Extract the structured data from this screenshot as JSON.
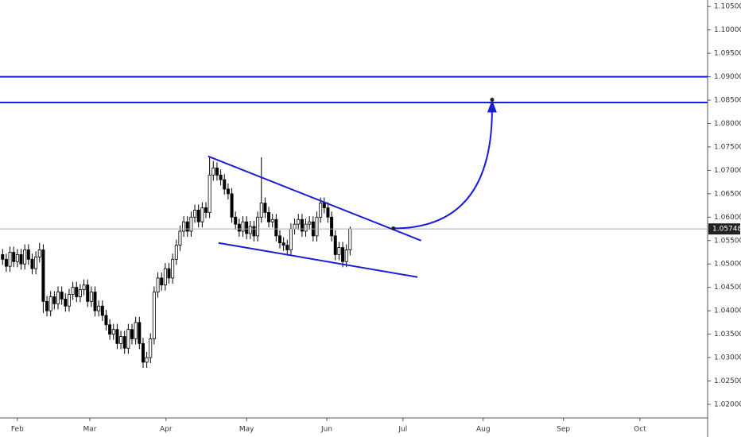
{
  "chart_data": {
    "type": "candlestick",
    "x": [
      -4,
      -3,
      -2,
      -1,
      0,
      1,
      2,
      3,
      4,
      5,
      6,
      7,
      8,
      9,
      10,
      11,
      12,
      13,
      14,
      15,
      16,
      17,
      18,
      19,
      20,
      21,
      22,
      23,
      24,
      25,
      26,
      27,
      28,
      29,
      30,
      31,
      32,
      33,
      34,
      35,
      36,
      37,
      38,
      39,
      40,
      41,
      42,
      43,
      44,
      45,
      46,
      47,
      48,
      49,
      50,
      51,
      52,
      53,
      54,
      55,
      56,
      57,
      58,
      59,
      60,
      61,
      62,
      63,
      64,
      65,
      66,
      67,
      68,
      69,
      70,
      71,
      72,
      73,
      74,
      75,
      76,
      77,
      78,
      79,
      80,
      81,
      82,
      83,
      84,
      85,
      86,
      87,
      88,
      89,
      90
    ],
    "open": [
      1.052,
      1.051,
      1.0495,
      1.0525,
      1.0505,
      1.052,
      1.05,
      1.053,
      1.051,
      1.049,
      1.0515,
      1.053,
      1.042,
      1.04,
      1.043,
      1.0415,
      1.044,
      1.0425,
      1.041,
      1.0435,
      1.045,
      1.043,
      1.0445,
      1.0455,
      1.042,
      1.044,
      1.04,
      1.041,
      1.039,
      1.037,
      1.035,
      1.036,
      1.033,
      1.0345,
      1.032,
      1.036,
      1.034,
      1.0375,
      1.033,
      1.029,
      1.03,
      1.034,
      1.044,
      1.047,
      1.0455,
      1.049,
      1.047,
      1.051,
      1.054,
      1.057,
      1.059,
      1.057,
      1.06,
      1.0615,
      1.059,
      1.062,
      1.061,
      1.069,
      1.0705,
      1.069,
      1.068,
      1.066,
      1.065,
      1.06,
      1.0585,
      1.057,
      1.059,
      1.0565,
      1.058,
      1.056,
      1.06,
      1.063,
      1.061,
      1.059,
      1.0595,
      1.056,
      1.0545,
      1.054,
      1.053,
      1.0575,
      1.0585,
      1.0595,
      1.057,
      1.0585,
      1.059,
      1.056,
      1.06,
      1.063,
      1.062,
      1.06,
      1.056,
      1.052,
      1.0535,
      1.0505,
      1.053
    ],
    "high": [
      1.0532,
      1.0522,
      1.0537,
      1.0537,
      1.0532,
      1.0532,
      1.0542,
      1.0542,
      1.0522,
      1.0527,
      1.0545,
      1.0542,
      1.0432,
      1.0442,
      1.0442,
      1.0452,
      1.0452,
      1.0437,
      1.0447,
      1.0462,
      1.0462,
      1.0457,
      1.0467,
      1.0467,
      1.0452,
      1.0452,
      1.0422,
      1.0422,
      1.0402,
      1.0382,
      1.0372,
      1.0372,
      1.0357,
      1.0357,
      1.0372,
      1.0372,
      1.0387,
      1.0387,
      1.0342,
      1.0312,
      1.0352,
      1.0452,
      1.0482,
      1.0482,
      1.0502,
      1.0502,
      1.0522,
      1.0552,
      1.0582,
      1.0602,
      1.0602,
      1.0612,
      1.0627,
      1.0627,
      1.0632,
      1.0632,
      1.0728,
      1.072,
      1.0717,
      1.0702,
      1.0692,
      1.0672,
      1.0662,
      1.0612,
      1.0597,
      1.0602,
      1.0602,
      1.0592,
      1.0592,
      1.0612,
      1.0728,
      1.0642,
      1.0622,
      1.0607,
      1.0607,
      1.0572,
      1.0557,
      1.0552,
      1.0587,
      1.0597,
      1.0607,
      1.0607,
      1.0597,
      1.0602,
      1.0602,
      1.0612,
      1.0642,
      1.0642,
      1.0632,
      1.0612,
      1.0572,
      1.0547,
      1.0547,
      1.0542,
      1.058
    ],
    "low": [
      1.0498,
      1.0483,
      1.0483,
      1.0493,
      1.0493,
      1.0488,
      1.0488,
      1.0498,
      1.0478,
      1.0478,
      1.0503,
      1.0395,
      1.0388,
      1.0388,
      1.0403,
      1.0403,
      1.0413,
      1.0398,
      1.0398,
      1.0423,
      1.0418,
      1.0418,
      1.0433,
      1.0408,
      1.0408,
      1.0388,
      1.0388,
      1.0378,
      1.0358,
      1.0338,
      1.0338,
      1.0318,
      1.0318,
      1.0308,
      1.0308,
      1.0328,
      1.0328,
      1.0318,
      1.0278,
      1.0278,
      1.0288,
      1.0328,
      1.0428,
      1.0443,
      1.0443,
      1.0458,
      1.0458,
      1.0498,
      1.0528,
      1.0558,
      1.0558,
      1.0558,
      1.0588,
      1.0578,
      1.0578,
      1.0598,
      1.0598,
      1.0678,
      1.0678,
      1.0668,
      1.0648,
      1.0638,
      1.0588,
      1.0573,
      1.0558,
      1.0558,
      1.0553,
      1.0553,
      1.0548,
      1.0548,
      1.0588,
      1.0598,
      1.0578,
      1.0578,
      1.0548,
      1.0533,
      1.0528,
      1.0518,
      1.0518,
      1.0563,
      1.0573,
      1.0558,
      1.0558,
      1.0573,
      1.0548,
      1.0548,
      1.0588,
      1.0608,
      1.0588,
      1.0548,
      1.0508,
      1.0508,
      1.0493,
      1.0493,
      1.0518
    ],
    "close": [
      1.051,
      1.0495,
      1.0525,
      1.0505,
      1.052,
      1.05,
      1.053,
      1.051,
      1.049,
      1.0515,
      1.053,
      1.042,
      1.04,
      1.043,
      1.0415,
      1.044,
      1.0425,
      1.041,
      1.0435,
      1.045,
      1.043,
      1.0445,
      1.0455,
      1.042,
      1.044,
      1.04,
      1.041,
      1.039,
      1.037,
      1.035,
      1.036,
      1.033,
      1.0345,
      1.032,
      1.036,
      1.034,
      1.0375,
      1.033,
      1.029,
      1.03,
      1.034,
      1.044,
      1.047,
      1.0455,
      1.049,
      1.047,
      1.051,
      1.054,
      1.057,
      1.059,
      1.057,
      1.06,
      1.0615,
      1.059,
      1.062,
      1.061,
      1.069,
      1.0705,
      1.069,
      1.068,
      1.066,
      1.065,
      1.06,
      1.0585,
      1.057,
      1.059,
      1.0565,
      1.058,
      1.056,
      1.06,
      1.063,
      1.061,
      1.059,
      1.0595,
      1.056,
      1.0545,
      1.054,
      1.053,
      1.0575,
      1.0585,
      1.0595,
      1.057,
      1.0585,
      1.059,
      1.056,
      1.06,
      1.063,
      1.062,
      1.06,
      1.056,
      1.052,
      1.0535,
      1.0505,
      1.053,
      1.05748
    ],
    "last_price": 1.05748,
    "xlim": [
      -4.7,
      186.7
    ],
    "xticks": [
      {
        "value": 0,
        "label": "Feb"
      },
      {
        "value": 19.6,
        "label": "Mar"
      },
      {
        "value": 40.2,
        "label": "Apr"
      },
      {
        "value": 62,
        "label": "May"
      },
      {
        "value": 83.7,
        "label": "Jun"
      },
      {
        "value": 104.3,
        "label": "Jul"
      },
      {
        "value": 126,
        "label": "Aug"
      },
      {
        "value": 147.7,
        "label": "Sep"
      },
      {
        "value": 168.4,
        "label": "Oct"
      }
    ],
    "ylim": [
      1.0171,
      1.1064
    ],
    "yticks": [
      {
        "value": 1.105,
        "label": "1.10500"
      },
      {
        "value": 1.1,
        "label": "1.10000"
      },
      {
        "value": 1.095,
        "label": "1.09500"
      },
      {
        "value": 1.09,
        "label": "1.09000"
      },
      {
        "value": 1.085,
        "label": "1.08500"
      },
      {
        "value": 1.08,
        "label": "1.08000"
      },
      {
        "value": 1.075,
        "label": "1.07500"
      },
      {
        "value": 1.07,
        "label": "1.07000"
      },
      {
        "value": 1.065,
        "label": "1.06500"
      },
      {
        "value": 1.06,
        "label": "1.06000"
      },
      {
        "value": 1.055,
        "label": "1.05500"
      },
      {
        "value": 1.05,
        "label": "1.05000"
      },
      {
        "value": 1.045,
        "label": "1.04500"
      },
      {
        "value": 1.04,
        "label": "1.04000"
      },
      {
        "value": 1.035,
        "label": "1.03500"
      },
      {
        "value": 1.03,
        "label": "1.03000"
      },
      {
        "value": 1.025,
        "label": "1.02500"
      },
      {
        "value": 1.02,
        "label": "1.02000"
      }
    ],
    "hlines": [
      1.09,
      1.0845
    ],
    "trendlines": [
      {
        "x": [
          51.6,
          109.2
        ],
        "y": [
          1.073,
          1.055
        ]
      },
      {
        "x": [
          54.4,
          108.2
        ],
        "y": [
          1.0545,
          1.0472
        ]
      }
    ],
    "arrow": {
      "x": [
        101.7,
        128.4
      ],
      "y": [
        1.0576,
        1.0851
      ]
    },
    "drawing_color": "#1c1cd8",
    "up_color": "#ffffff",
    "down_color": "#000000"
  }
}
